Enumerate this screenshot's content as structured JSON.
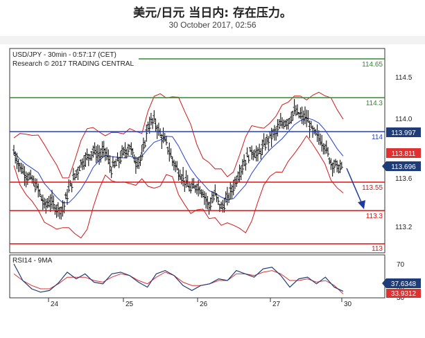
{
  "header": {
    "title": "美元/日元 当日内: 存在压力。",
    "date": "30 October 2017, 02:56"
  },
  "price_panel": {
    "symbol_line": "USD/JPY - 30min - 0:57:17 (CET)",
    "source_line": "Research © 2017 TRADING CENTRAL",
    "y_ticks": [
      "114.5",
      "114.0",
      "113.6",
      "113.2"
    ],
    "current_price": "113.696",
    "current_price_color": "#1e3c78",
    "bollinger_upper_value": "113.997",
    "bollinger_upper_color": "#1e3c78",
    "resistance_tag_value": "113.811",
    "resistance_tag_color": "#e03030"
  },
  "levels": [
    {
      "label": "114.65",
      "color": "#2e8b2e"
    },
    {
      "label": "114.3",
      "color": "#2e8b2e"
    },
    {
      "label": "114",
      "color": "#1f3fd6"
    },
    {
      "label": "113.55",
      "color": "#e01010"
    },
    {
      "label": "113.3",
      "color": "#e01010"
    },
    {
      "label": "113",
      "color": "#e01010"
    }
  ],
  "rsi_panel": {
    "label": "RSI14 - 9MA",
    "y_ticks": [
      "70",
      "50",
      "30"
    ],
    "rsi_value": "37.6348",
    "ma_value": "33.9312",
    "rsi_color": "#1e3c78",
    "ma_color": "#e03030"
  },
  "x_axis": {
    "ticks": [
      "24",
      "25",
      "26",
      "27",
      "30"
    ]
  },
  "chart_data": {
    "type": "line",
    "series": [
      {
        "values": [
          113.85,
          113.72,
          113.65,
          113.6,
          113.52,
          113.38,
          113.42,
          113.36,
          113.35,
          113.52,
          113.64,
          113.75,
          113.8,
          113.86,
          113.82,
          113.86,
          113.7,
          113.76,
          113.84,
          113.9,
          113.76,
          113.8,
          114.08,
          114.12,
          114.0,
          113.92,
          113.78,
          113.68,
          113.6,
          113.52,
          113.56,
          113.5,
          113.38,
          113.48,
          113.36,
          113.44,
          113.55,
          113.68,
          113.78,
          113.86,
          113.82,
          113.9,
          113.98,
          114.02,
          114.1,
          114.12,
          114.2,
          114.16,
          114.14,
          114.02,
          113.98,
          113.9,
          113.76,
          113.72,
          113.7
        ]
      },
      {
        "values": [
          70,
          50,
          40,
          36,
          38,
          47,
          60,
          52,
          58,
          48,
          46,
          58,
          60,
          56,
          48,
          42,
          58,
          62,
          56,
          44,
          38,
          44,
          46,
          52,
          50,
          62,
          58,
          54,
          64,
          66,
          56,
          42,
          52,
          54,
          46,
          54,
          42,
          37
        ]
      },
      {
        "values": [
          58,
          50,
          44,
          40,
          40,
          46,
          54,
          54,
          54,
          50,
          48,
          54,
          58,
          56,
          50,
          46,
          54,
          60,
          56,
          48,
          44,
          44,
          46,
          50,
          50,
          58,
          58,
          56,
          60,
          62,
          58,
          50,
          50,
          52,
          48,
          50,
          44,
          34
        ]
      }
    ],
    "ylim": [
      113.0,
      114.65
    ],
    "rsi_ylim": [
      30,
      70
    ],
    "grid": false
  }
}
